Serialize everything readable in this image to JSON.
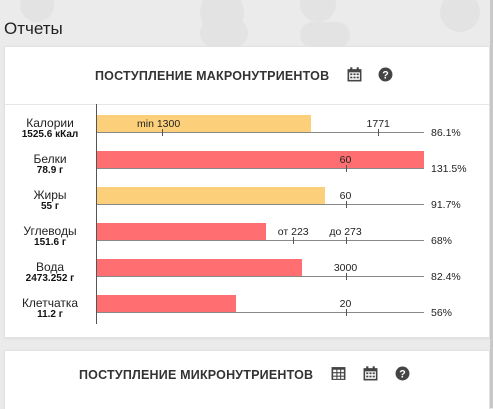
{
  "page": {
    "title": "Отчеты"
  },
  "colors": {
    "bar_yellow": "#fcd07a",
    "bar_red": "#ff6f72",
    "page_bg": "#ebebeb"
  },
  "macro_card": {
    "title": "ПОСТУПЛЕНИЕ МАКРОНУТРИЕНТОВ",
    "icons": [
      "calendar-icon",
      "help-icon"
    ]
  },
  "micro_card": {
    "title": "ПОСТУПЛЕНИЕ МИКРОНУТРИЕНТОВ",
    "icons": [
      "table-icon",
      "calendar-icon",
      "help-icon"
    ]
  },
  "chart_data": {
    "type": "bar",
    "orientation": "horizontal",
    "rows": [
      {
        "name": "Калории",
        "value_label": "1525.6 кКал",
        "percent": "86.1%",
        "percent_value": 86.1,
        "color": "yellow",
        "targets": [
          {
            "label": "min 1300",
            "inside_bar": true
          },
          {
            "label": "1771",
            "fraction": 0.86
          }
        ]
      },
      {
        "name": "Белки",
        "value_label": "78.9 г",
        "percent": "131.5%",
        "percent_value": 131.5,
        "color": "red",
        "targets": [
          {
            "label": "60",
            "fraction": 0.76
          }
        ]
      },
      {
        "name": "Жиры",
        "value_label": "55 г",
        "percent": "91.7%",
        "percent_value": 91.7,
        "color": "yellow",
        "targets": [
          {
            "label": "60",
            "fraction": 0.76
          }
        ]
      },
      {
        "name": "Углеводы",
        "value_label": "151.6 г",
        "percent": "68%",
        "percent_value": 68,
        "color": "red",
        "targets": [
          {
            "label": "от 223",
            "fraction": 0.6
          },
          {
            "label": "до 273",
            "fraction": 0.76
          }
        ]
      },
      {
        "name": "Вода",
        "value_label": "2473.252 г",
        "percent": "82.4%",
        "percent_value": 82.4,
        "color": "red",
        "targets": [
          {
            "label": "3000",
            "fraction": 0.76
          }
        ]
      },
      {
        "name": "Клетчатка",
        "value_label": "11.2 г",
        "percent": "56%",
        "percent_value": 56,
        "color": "red",
        "targets": [
          {
            "label": "20",
            "fraction": 0.76
          }
        ]
      }
    ]
  }
}
